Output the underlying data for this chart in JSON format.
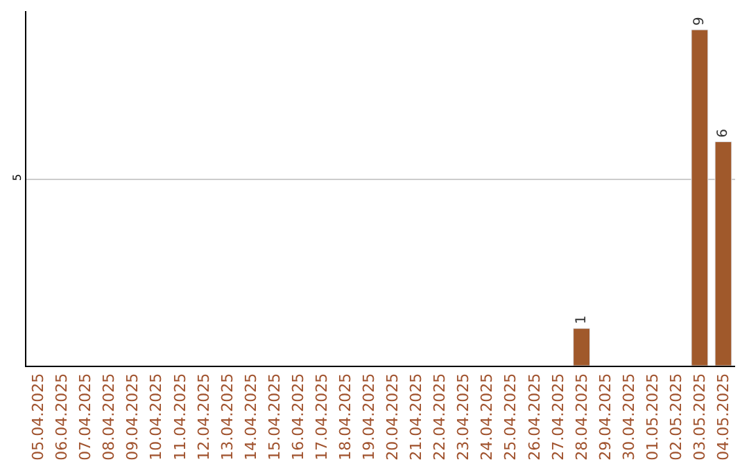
{
  "chart_data": {
    "type": "bar",
    "categories": [
      "05.04.2025",
      "06.04.2025",
      "07.04.2025",
      "08.04.2025",
      "09.04.2025",
      "10.04.2025",
      "11.04.2025",
      "12.04.2025",
      "13.04.2025",
      "14.04.2025",
      "15.04.2025",
      "16.04.2025",
      "17.04.2025",
      "18.04.2025",
      "19.04.2025",
      "20.04.2025",
      "21.04.2025",
      "22.04.2025",
      "23.04.2025",
      "24.04.2025",
      "25.04.2025",
      "26.04.2025",
      "27.04.2025",
      "28.04.2025",
      "29.04.2025",
      "30.04.2025",
      "01.05.2025",
      "02.05.2025",
      "03.05.2025",
      "04.05.2025"
    ],
    "values": [
      null,
      null,
      null,
      null,
      null,
      null,
      null,
      null,
      null,
      null,
      null,
      null,
      null,
      null,
      null,
      null,
      null,
      null,
      null,
      null,
      null,
      null,
      null,
      1,
      null,
      null,
      null,
      null,
      9,
      6
    ],
    "color": "#a0592b",
    "ylim": [
      0,
      9.5
    ],
    "yticks": [
      5
    ],
    "grid": "y",
    "data_labels": true,
    "legend": false
  }
}
